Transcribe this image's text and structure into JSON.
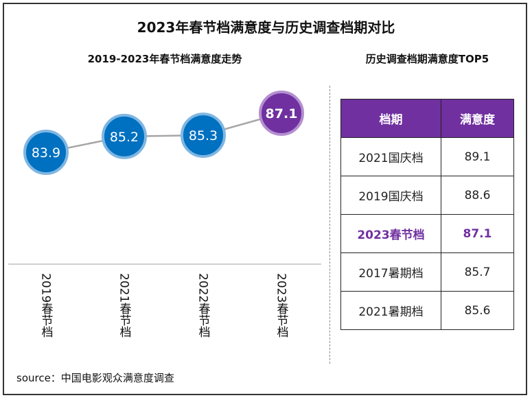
{
  "title": "2023年春节档满意度与历史调查档期对比",
  "chart_data": [
    {
      "type": "line",
      "title": "2019-2023年春节档满意度走势",
      "categories": [
        "2019春节档",
        "2021春节档",
        "2022春节档",
        "2023春节档"
      ],
      "values": [
        83.9,
        85.2,
        85.3,
        87.1
      ],
      "data_labels": [
        "83.9",
        "85.2",
        "85.3",
        "87.1"
      ],
      "highlight_index": 3,
      "colors": {
        "point": "#0070c0",
        "highlight": "#7030a0",
        "line": "#a6a6a6"
      }
    },
    {
      "type": "table",
      "title": "历史调查档期满意度TOP5",
      "columns": [
        "档期",
        "满意度"
      ],
      "rows": [
        [
          "2021国庆档",
          "89.1"
        ],
        [
          "2019国庆档",
          "88.6"
        ],
        [
          "2023春节档",
          "87.1"
        ],
        [
          "2017暑期档",
          "85.7"
        ],
        [
          "2021暑期档",
          "85.6"
        ]
      ],
      "highlight_row": 2,
      "colors": {
        "header": "#7030a0",
        "highlight_text": "#7030a0"
      }
    }
  ],
  "source": "source：中国电影观众满意度调查"
}
